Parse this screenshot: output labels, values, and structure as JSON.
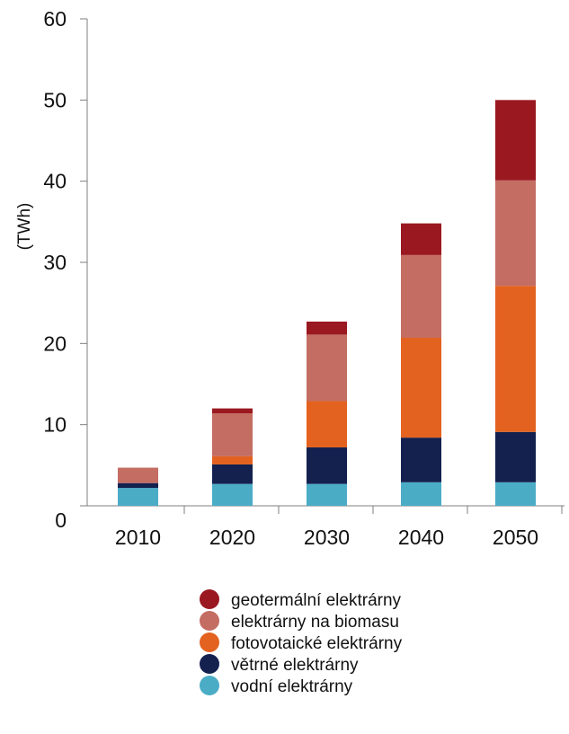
{
  "chart_data": {
    "type": "bar",
    "stacked": true,
    "title": "",
    "xlabel": "",
    "ylabel": "(TWh)",
    "ylim": [
      0,
      60
    ],
    "yticks": [
      0,
      10,
      20,
      30,
      40,
      50,
      60
    ],
    "categories": [
      "2010",
      "2020",
      "2030",
      "2040",
      "2050"
    ],
    "grid": false,
    "legend": "bottom",
    "series": [
      {
        "name": "vodní elektrárny",
        "color": "#4bacc6",
        "values": [
          2.2,
          2.7,
          2.7,
          2.9,
          2.9
        ]
      },
      {
        "name": "větrné elektrárny",
        "color": "#14214f",
        "values": [
          0.6,
          2.4,
          4.5,
          5.5,
          6.2
        ]
      },
      {
        "name": "fotovotaické elektrárny",
        "color": "#e3621f",
        "values": [
          0.0,
          1.0,
          5.7,
          12.3,
          18.0
        ]
      },
      {
        "name": "elektrárny na biomasu",
        "color": "#c46d63",
        "values": [
          1.9,
          5.3,
          8.2,
          10.2,
          13.0
        ]
      },
      {
        "name": "geotermální elektrárny",
        "color": "#9a1820",
        "values": [
          0.0,
          0.6,
          1.6,
          3.9,
          9.9
        ]
      }
    ]
  }
}
